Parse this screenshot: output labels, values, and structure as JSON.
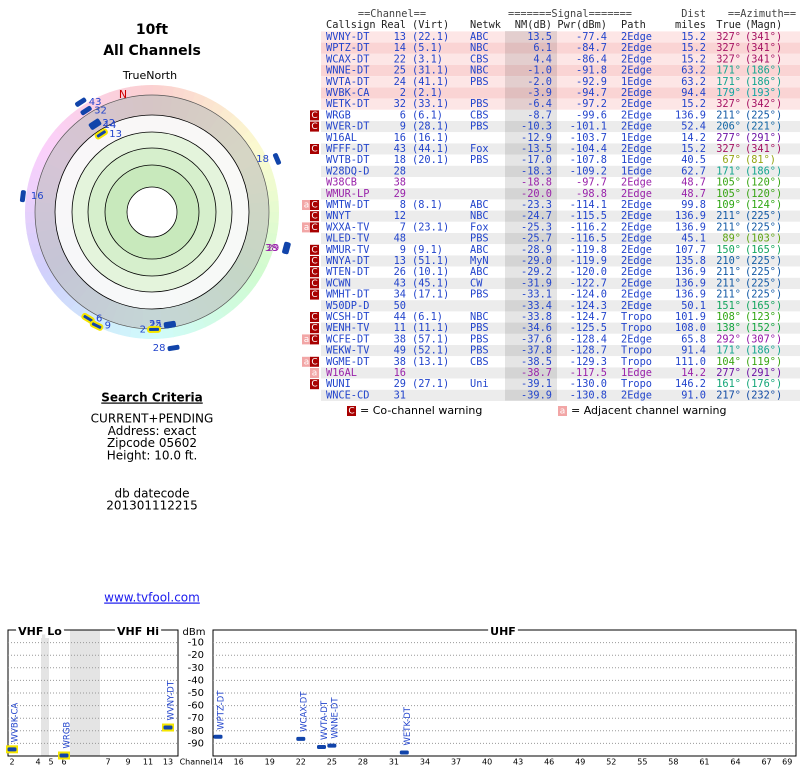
{
  "header": {
    "title": "10ft",
    "subtitle": "All Channels"
  },
  "polar": {
    "north_label": "TrueNorth",
    "n": "N",
    "points": [
      {
        "label": "13",
        "azimuth": 327,
        "nm": 13.5
      },
      {
        "label": "14",
        "azimuth": 327,
        "nm": 6.1
      },
      {
        "label": "22",
        "azimuth": 327,
        "nm": 4.4
      },
      {
        "label": "25",
        "azimuth": 171,
        "nm": -1.0
      },
      {
        "label": "24",
        "azimuth": 171,
        "nm": -2.0
      },
      {
        "label": "2",
        "azimuth": 179,
        "nm": -3.9
      },
      {
        "label": "32",
        "azimuth": 327,
        "nm": -6.4
      },
      {
        "label": "6",
        "azimuth": 211,
        "nm": -8.7
      },
      {
        "label": "9",
        "azimuth": 206,
        "nm": -10.3
      },
      {
        "label": "16",
        "azimuth": 277,
        "nm": -12.9
      },
      {
        "label": "43",
        "azimuth": 327,
        "nm": -13.5
      },
      {
        "label": "18",
        "azimuth": 67,
        "nm": -17.0
      },
      {
        "label": "28",
        "azimuth": 171,
        "nm": -18.3
      },
      {
        "label": "38",
        "azimuth": 105,
        "nm": -18.8,
        "color": "#9922aa"
      },
      {
        "label": "29",
        "azimuth": 105,
        "nm": -20.0,
        "color": "#9922aa"
      }
    ]
  },
  "criteria": {
    "title": "Search Criteria",
    "lines": [
      "CURRENT+PENDING",
      "Address: exact",
      "Zipcode 05602",
      "Height: 10.0 ft."
    ],
    "datecode_label": "db datecode",
    "datecode": "201301112215",
    "link": "www.tvfool.com"
  },
  "table": {
    "group_headers": [
      "==Channel==",
      "=======Signal=======",
      "Dist",
      "==Azimuth=="
    ],
    "columns": [
      "Callsign",
      "Real",
      "(Virt)",
      "Netwk",
      "NM(dB)",
      "Pwr(dBm)",
      "Path",
      "miles",
      "True",
      "(Magn)"
    ],
    "rows": [
      {
        "cells": [
          "WVNY-DT",
          "13",
          "(22.1)",
          "ABC",
          "13.5",
          "-77.4",
          "2Edge",
          "15.2",
          "327°",
          "(341°)"
        ]
      },
      {
        "cells": [
          "WPTZ-DT",
          "14",
          "(5.1)",
          "NBC",
          "6.1",
          "-84.7",
          "2Edge",
          "15.2",
          "327°",
          "(341°)"
        ]
      },
      {
        "cells": [
          "WCAX-DT",
          "22",
          "(3.1)",
          "CBS",
          "4.4",
          "-86.4",
          "2Edge",
          "15.2",
          "327°",
          "(341°)"
        ]
      },
      {
        "cells": [
          "WNNE-DT",
          "25",
          "(31.1)",
          "NBC",
          "-1.0",
          "-91.8",
          "2Edge",
          "63.2",
          "171°",
          "(186°)"
        ]
      },
      {
        "cells": [
          "WVTA-DT",
          "24",
          "(41.1)",
          "PBS",
          "-2.0",
          "-92.9",
          "1Edge",
          "63.2",
          "171°",
          "(186°)"
        ]
      },
      {
        "cells": [
          "WVBK-CA",
          "2",
          "(2.1)",
          null,
          "-3.9",
          "-94.7",
          "2Edge",
          "94.4",
          "179°",
          "(193°)"
        ]
      },
      {
        "cells": [
          "WETK-DT",
          "32",
          "(33.1)",
          "PBS",
          "-6.4",
          "-97.2",
          "2Edge",
          "15.2",
          "327°",
          "(342°)"
        ]
      },
      {
        "cells": [
          "WRGB",
          "6",
          "(6.1)",
          "CBS",
          "-8.7",
          "-99.6",
          "2Edge",
          "136.9",
          "211°",
          "(225°)"
        ],
        "flags": [
          "C"
        ]
      },
      {
        "cells": [
          "WVER-DT",
          "9",
          "(28.1)",
          "PBS",
          "-10.3",
          "-101.1",
          "2Edge",
          "52.4",
          "206°",
          "(221°)"
        ],
        "flags": [
          "C"
        ]
      },
      {
        "cells": [
          "W16AL",
          "16",
          "(16.1)",
          null,
          "-12.9",
          "-103.7",
          "1Edge",
          "14.2",
          "277°",
          "(291°)"
        ]
      },
      {
        "cells": [
          "WFFF-DT",
          "43",
          "(44.1)",
          "Fox",
          "-13.5",
          "-104.4",
          "2Edge",
          "15.2",
          "327°",
          "(341°)"
        ],
        "flags": [
          "C"
        ]
      },
      {
        "cells": [
          "WVTB-DT",
          "18",
          "(20.1)",
          "PBS",
          "-17.0",
          "-107.8",
          "1Edge",
          "40.5",
          "67°",
          "(81°)"
        ]
      },
      {
        "cells": [
          "W28DQ-D",
          "28",
          null,
          null,
          "-18.3",
          "-109.2",
          "1Edge",
          "62.7",
          "171°",
          "(186°)"
        ]
      },
      {
        "cells": [
          "W38CB",
          "38",
          null,
          null,
          "-18.8",
          "-97.7",
          "2Edge",
          "48.7",
          "105°",
          "(120°)"
        ],
        "color": "#9922aa"
      },
      {
        "cells": [
          "WMUR-LP",
          "29",
          null,
          null,
          "-20.0",
          "-98.8",
          "2Edge",
          "48.7",
          "105°",
          "(120°)"
        ],
        "color": "#9922aa"
      },
      {
        "cells": [
          "WMTW-DT",
          "8",
          "(8.1)",
          "ABC",
          "-23.3",
          "-114.1",
          "2Edge",
          "99.8",
          "109°",
          "(124°)"
        ],
        "flags": [
          "a",
          "C"
        ]
      },
      {
        "cells": [
          "WNYT",
          "12",
          null,
          "NBC",
          "-24.7",
          "-115.5",
          "2Edge",
          "136.9",
          "211°",
          "(225°)"
        ],
        "flags": [
          "C"
        ]
      },
      {
        "cells": [
          "WXXA-TV",
          "7",
          "(23.1)",
          "Fox",
          "-25.3",
          "-116.2",
          "2Edge",
          "136.9",
          "211°",
          "(225°)"
        ],
        "flags": [
          "a",
          "C"
        ]
      },
      {
        "cells": [
          "WLED-TV",
          "48",
          null,
          "PBS",
          "-25.7",
          "-116.5",
          "2Edge",
          "45.1",
          "89°",
          "(103°)"
        ]
      },
      {
        "cells": [
          "WMUR-TV",
          "9",
          "(9.1)",
          "ABC",
          "-28.9",
          "-119.8",
          "2Edge",
          "107.7",
          "150°",
          "(165°)"
        ],
        "flags": [
          "C"
        ]
      },
      {
        "cells": [
          "WNYA-DT",
          "13",
          "(51.1)",
          "MyN",
          "-29.0",
          "-119.9",
          "2Edge",
          "135.8",
          "210°",
          "(225°)"
        ],
        "flags": [
          "C"
        ]
      },
      {
        "cells": [
          "WTEN-DT",
          "26",
          "(10.1)",
          "ABC",
          "-29.2",
          "-120.0",
          "2Edge",
          "136.9",
          "211°",
          "(225°)"
        ],
        "flags": [
          "C"
        ]
      },
      {
        "cells": [
          "WCWN",
          "43",
          "(45.1)",
          "CW",
          "-31.9",
          "-122.7",
          "2Edge",
          "136.9",
          "211°",
          "(225°)"
        ],
        "flags": [
          "C"
        ]
      },
      {
        "cells": [
          "WMHT-DT",
          "34",
          "(17.1)",
          "PBS",
          "-33.1",
          "-124.0",
          "2Edge",
          "136.9",
          "211°",
          "(225°)"
        ],
        "flags": [
          "C"
        ]
      },
      {
        "cells": [
          "W50DP-D",
          "50",
          null,
          null,
          "-33.4",
          "-124.3",
          "2Edge",
          "50.1",
          "151°",
          "(165°)"
        ]
      },
      {
        "cells": [
          "WCSH-DT",
          "44",
          "(6.1)",
          "NBC",
          "-33.8",
          "-124.7",
          "Tropo",
          "101.9",
          "108°",
          "(123°)"
        ],
        "flags": [
          "C"
        ]
      },
      {
        "cells": [
          "WENH-TV",
          "11",
          "(11.1)",
          "PBS",
          "-34.6",
          "-125.5",
          "Tropo",
          "108.0",
          "138°",
          "(152°)"
        ],
        "flags": [
          "C"
        ]
      },
      {
        "cells": [
          "WCFE-DT",
          "38",
          "(57.1)",
          "PBS",
          "-37.6",
          "-128.4",
          "2Edge",
          "65.8",
          "292°",
          "(307°)"
        ],
        "flags": [
          "a",
          "C"
        ]
      },
      {
        "cells": [
          "WEKW-TV",
          "49",
          "(52.1)",
          "PBS",
          "-37.8",
          "-128.7",
          "Tropo",
          "91.4",
          "171°",
          "(186°)"
        ]
      },
      {
        "cells": [
          "WGME-DT",
          "38",
          "(13.1)",
          "CBS",
          "-38.5",
          "-129.3",
          "Tropo",
          "111.0",
          "104°",
          "(119°)"
        ],
        "flags": [
          "a",
          "C"
        ]
      },
      {
        "cells": [
          "W16AL",
          "16",
          null,
          null,
          "-38.7",
          "-117.5",
          "1Edge",
          "14.2",
          "277°",
          "(291°)"
        ],
        "flags": [
          "a"
        ],
        "color": "#9922aa"
      },
      {
        "cells": [
          "WUNI",
          "29",
          "(27.1)",
          "Uni",
          "-39.1",
          "-130.0",
          "Tropo",
          "146.2",
          "161°",
          "(176°)"
        ],
        "flags": [
          "C"
        ]
      },
      {
        "cells": [
          "WNCE-CD",
          "31",
          null,
          null,
          "-39.9",
          "-130.8",
          "2Edge",
          "91.0",
          "217°",
          "(232°)"
        ]
      }
    ]
  },
  "legend": [
    {
      "icon": "C",
      "text": "= Co-channel warning"
    },
    {
      "icon": "a",
      "text": "= Adjacent channel warning"
    }
  ],
  "spectrum": {
    "band_labels": [
      "VHF Lo",
      "VHF Hi",
      "UHF"
    ],
    "y_label": "dBm",
    "x_label": "Channel",
    "ylim": [
      -100,
      0
    ],
    "yticks": [
      -10,
      -20,
      -30,
      -40,
      -50,
      -60,
      -70,
      -80,
      -90
    ],
    "xticks_vhf": [
      2,
      4,
      5,
      6,
      7,
      9,
      11,
      13
    ],
    "xticks_uhf": [
      14,
      16,
      19,
      22,
      25,
      28,
      31,
      34,
      37,
      40,
      43,
      46,
      49,
      52,
      55,
      58,
      61,
      64,
      67,
      69
    ],
    "stations": [
      {
        "name": "WVBK-CA",
        "channel": 2,
        "dbm": -94.7
      },
      {
        "name": "WRGB",
        "channel": 6,
        "dbm": -99.6
      },
      {
        "name": "WVNY-DT",
        "channel": 13,
        "dbm": -77.4
      },
      {
        "name": "WPTZ-DT",
        "channel": 14,
        "dbm": -84.7
      },
      {
        "name": "WCAX-DT",
        "channel": 22,
        "dbm": -86.4
      },
      {
        "name": "WVTA-DT",
        "channel": 24,
        "dbm": -92.9
      },
      {
        "name": "WNNE-DT",
        "channel": 25,
        "dbm": -91.8
      },
      {
        "name": "WETK-DT",
        "channel": 32,
        "dbm": -97.2
      }
    ]
  }
}
